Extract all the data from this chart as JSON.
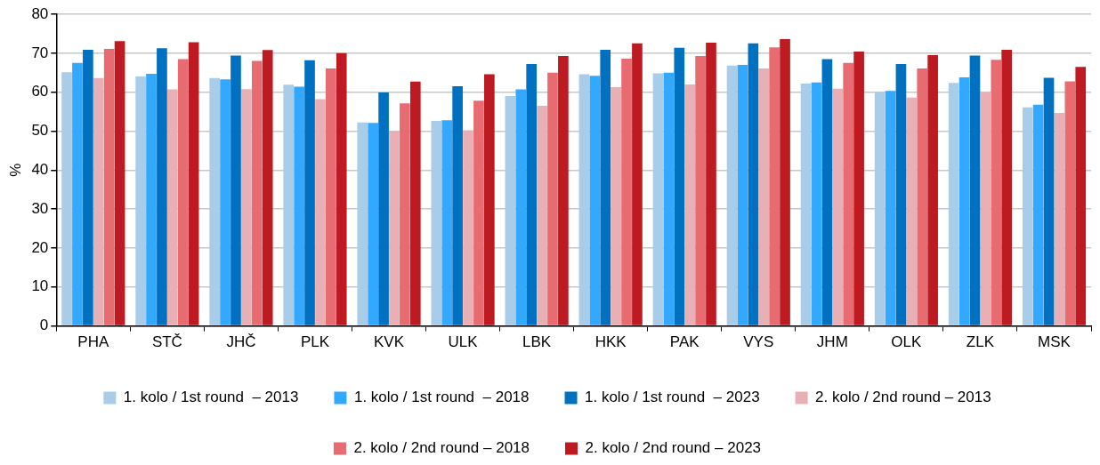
{
  "chart_data": {
    "type": "bar",
    "ylabel": "%",
    "categories": [
      "PHA",
      "STČ",
      "JHČ",
      "PLK",
      "KVK",
      "ULK",
      "LBK",
      "HKK",
      "PAK",
      "VYS",
      "JHM",
      "OLK",
      "ZLK",
      "MSK"
    ],
    "series": [
      {
        "name": "1. kolo / 1st round  – 2013",
        "color": "#a9cce8",
        "values": [
          65.1,
          64.0,
          63.6,
          61.9,
          52.2,
          52.6,
          59.0,
          64.6,
          64.8,
          66.8,
          62.2,
          60.1,
          62.4,
          56.1
        ]
      },
      {
        "name": "1. kolo / 1st round  – 2018",
        "color": "#33a8ff",
        "values": [
          67.5,
          64.7,
          63.3,
          61.4,
          52.1,
          52.8,
          60.7,
          64.2,
          65.0,
          67.0,
          62.5,
          60.3,
          63.8,
          56.8
        ]
      },
      {
        "name": "1. kolo / 1st round  – 2023",
        "color": "#0070c0",
        "values": [
          70.9,
          71.3,
          69.4,
          68.2,
          59.9,
          61.5,
          67.2,
          70.9,
          71.4,
          72.5,
          68.5,
          67.2,
          69.4,
          63.7
        ]
      },
      {
        "name": "2. kolo / 2nd round – 2013",
        "color": "#e8b0b4",
        "values": [
          63.6,
          60.7,
          60.8,
          58.2,
          50.0,
          50.2,
          56.5,
          61.3,
          62.0,
          66.1,
          60.9,
          58.6,
          60.0,
          54.7
        ]
      },
      {
        "name": "2. kolo / 2nd round – 2018",
        "color": "#e86b72",
        "values": [
          71.1,
          68.5,
          68.0,
          66.1,
          57.1,
          57.8,
          65.0,
          68.6,
          69.3,
          71.5,
          67.5,
          66.1,
          68.3,
          62.8
        ]
      },
      {
        "name": "2. kolo / 2nd round – 2023",
        "color": "#be1a22",
        "values": [
          73.1,
          72.8,
          70.8,
          70.0,
          62.7,
          64.6,
          69.3,
          72.5,
          72.7,
          73.6,
          70.4,
          69.5,
          70.9,
          66.5
        ]
      }
    ],
    "ylim": [
      0,
      80
    ],
    "yticks": [
      0,
      10,
      20,
      30,
      40,
      50,
      60,
      70,
      80
    ],
    "grid": "y",
    "legend": "bottom"
  }
}
